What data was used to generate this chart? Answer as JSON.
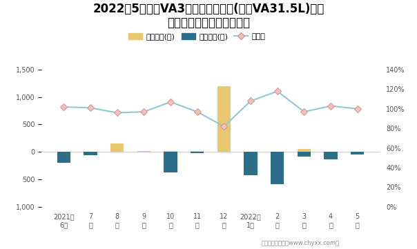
{
  "title_line1": "2022年5月捷达VA3旗下最畅销轿车(捷达VA31.5L)近一",
  "title_line2": "年库存情况及产销率统计图",
  "categories": [
    "2021年\n6月",
    "7\n月",
    "8\n月",
    "9\n月",
    "10\n月",
    "11\n月",
    "12\n月",
    "2022年\n1月",
    "2\n月",
    "3\n月",
    "4\n月",
    "5\n月"
  ],
  "jiiya_values": [
    0,
    0,
    150,
    10,
    10,
    10,
    1200,
    0,
    0,
    50,
    0,
    0
  ],
  "qingcang_values": [
    -200,
    -60,
    0,
    0,
    -370,
    -20,
    0,
    -430,
    -590,
    -80,
    -130,
    -50
  ],
  "chanxiaolv": [
    1.02,
    1.01,
    0.96,
    0.97,
    1.07,
    0.97,
    0.82,
    1.08,
    1.18,
    0.97,
    1.03,
    1.0
  ],
  "jiiya_color": "#E8C86E",
  "qingcang_color": "#2C6E8A",
  "chanxiaolv_line_color": "#8FC8D8",
  "chanxiaolv_marker_facecolor": "#F5C0B8",
  "chanxiaolv_marker_edgecolor": "#D89898",
  "ylim_left": [
    -1000,
    1500
  ],
  "ylim_right": [
    0.0,
    1.4
  ],
  "yticks_left": [
    -1000,
    -500,
    0,
    500,
    1000,
    1500
  ],
  "ytick_labels_left": [
    "1,000",
    "500",
    "0",
    "500",
    "1,000",
    "1,500"
  ],
  "yticks_right": [
    0.0,
    0.2,
    0.4,
    0.6,
    0.8,
    1.0,
    1.2,
    1.4
  ],
  "ytick_labels_right": [
    "0%",
    "20%",
    "40%",
    "60%",
    "80%",
    "100%",
    "120%",
    "140%"
  ],
  "legend_jiiya": "积压库存(辆)",
  "legend_qingcang": "清仓库存(辆)",
  "legend_chanxiaolv": "产销率",
  "footnote": "制图：智研咨询（www.chyxx.com）",
  "bg_color": "#FFFFFF",
  "title_fontsize": 12,
  "axis_fontsize": 7,
  "legend_fontsize": 8,
  "bar_width": 0.5
}
